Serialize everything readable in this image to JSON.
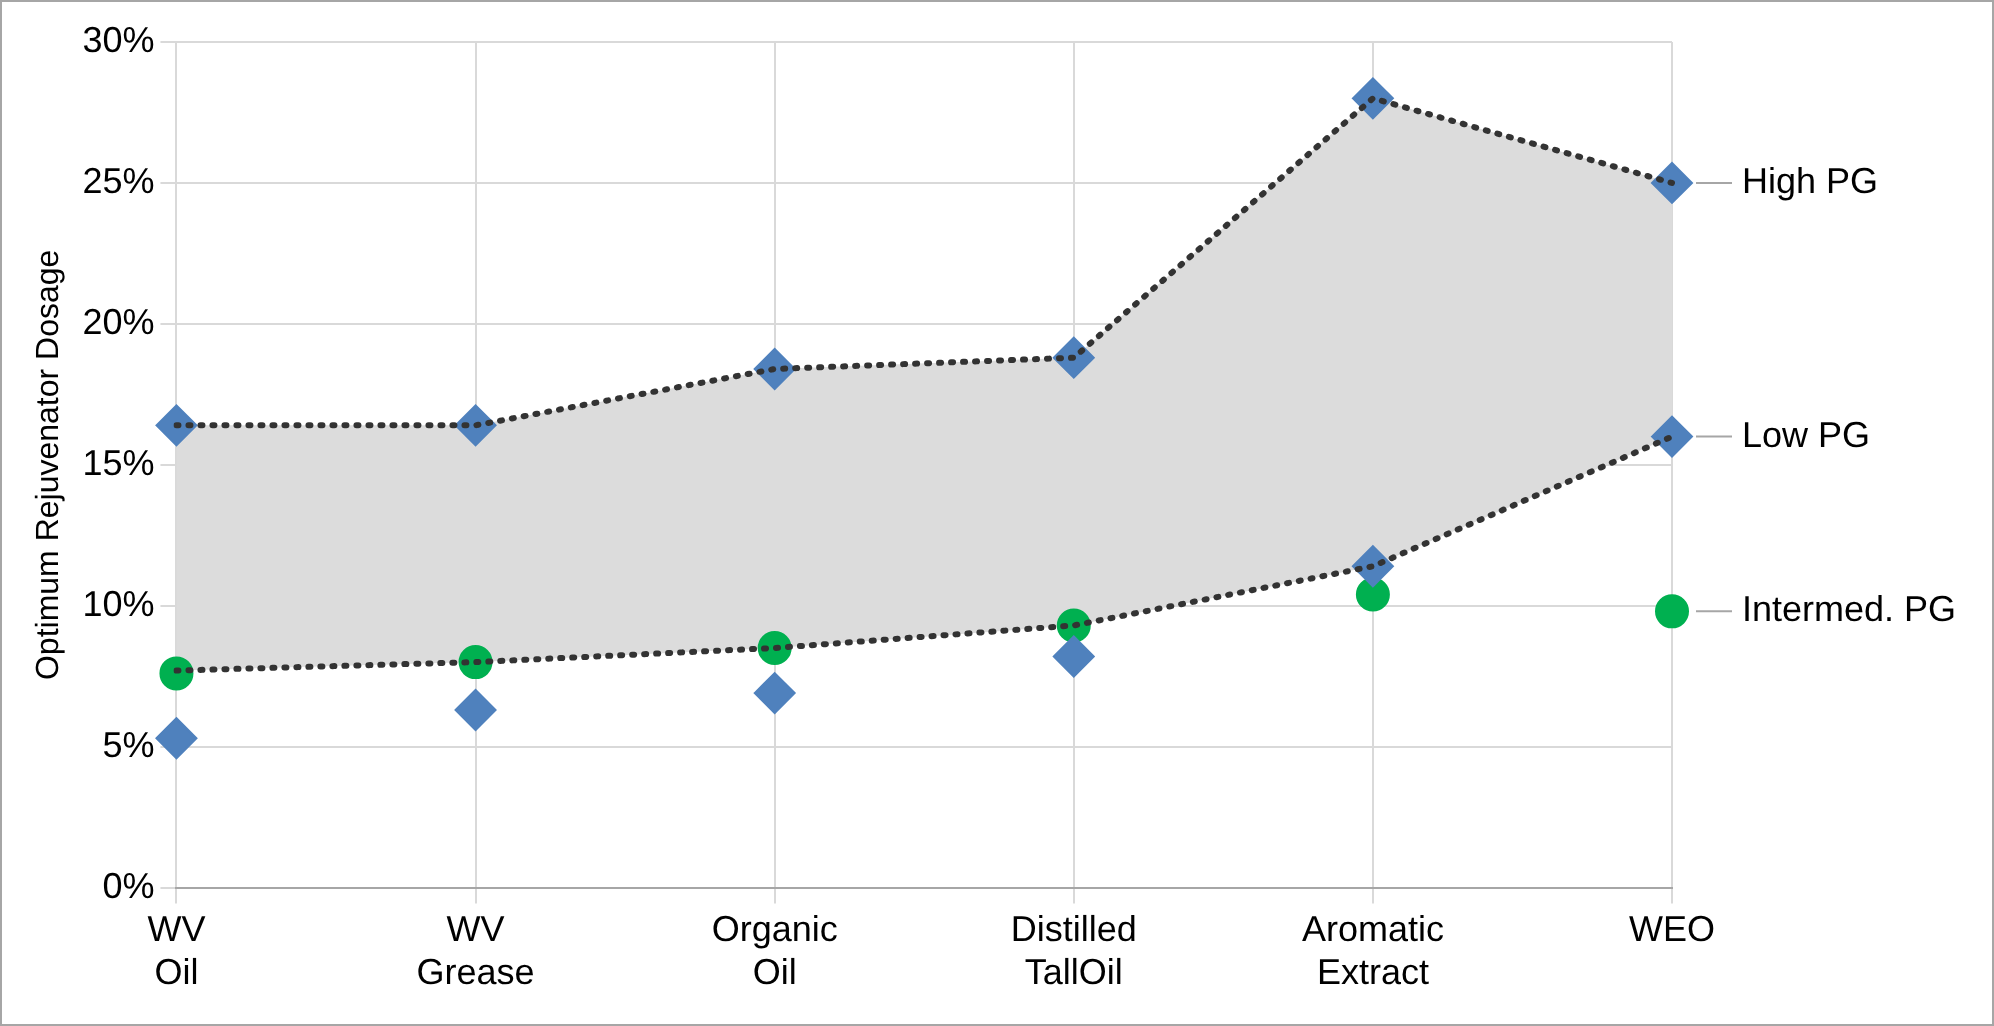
{
  "chart_data": {
    "type": "scatter",
    "ylabel": "Optimum Rejuvenator Dosage",
    "categories": [
      "WV Oil",
      "WV Grease",
      "Organic Oil",
      "Distilled TallOil",
      "Aromatic Extract",
      "WEO"
    ],
    "series": [
      {
        "type": "line",
        "color": "#333333",
        "line_style": "dotted",
        "marker": "none",
        "values": [
          7.7,
          8.0,
          8.5,
          9.3,
          11.4,
          16.0
        ],
        "lower": [
          7.7,
          8.0,
          8.5,
          9.3,
          11.4,
          16.0
        ],
        "upper": [
          16.4,
          16.4,
          18.4,
          18.8,
          28.0,
          25.0
        ]
      },
      {
        "type": "line",
        "color": "#333333",
        "line_style": "dotted",
        "marker": "none",
        "values": [
          16.4,
          16.4,
          18.4,
          18.8,
          28.0,
          25.0
        ]
      },
      {
        "name": "High PG",
        "marker": "diamond",
        "color": "#4f81bd",
        "values": [
          16.4,
          16.4,
          18.4,
          18.8,
          28.0,
          25.0
        ]
      },
      {
        "name": "Low PG",
        "marker": "diamond",
        "color": "#4f81bd",
        "values": [
          5.3,
          6.3,
          6.9,
          8.2,
          11.4,
          16.0
        ]
      },
      {
        "name": "Intermed. PG",
        "marker": "circle",
        "color": "#00b050",
        "values": [
          7.6,
          8.0,
          8.5,
          9.3,
          10.4,
          9.8
        ]
      }
    ],
    "ylim": [
      0,
      30
    ],
    "yticks": [
      {
        "value": 0,
        "label": "0%"
      },
      {
        "value": 5,
        "label": "5%"
      },
      {
        "value": 10,
        "label": "10%"
      },
      {
        "value": 15,
        "label": "15%"
      },
      {
        "value": 20,
        "label": "20%"
      },
      {
        "value": 25,
        "label": "25%"
      },
      {
        "value": 30,
        "label": "30%"
      }
    ],
    "grid": true,
    "legend": false
  }
}
